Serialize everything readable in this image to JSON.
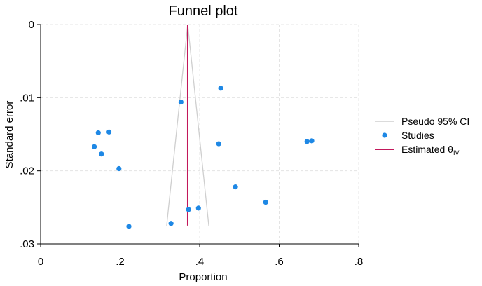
{
  "chart_data": {
    "type": "scatter",
    "title": "Funnel plot",
    "xlabel": "Proportion",
    "ylabel": "Standard error",
    "xlim": [
      0,
      0.8
    ],
    "ylim": [
      0,
      0.03
    ],
    "y_reversed": true,
    "x_ticks": [
      0,
      0.2,
      0.4,
      0.6,
      0.8
    ],
    "x_tick_labels": [
      "0",
      ".2",
      ".4",
      ".6",
      ".8"
    ],
    "y_ticks": [
      0,
      0.01,
      0.02,
      0.03
    ],
    "y_tick_labels": [
      "0",
      ".01",
      ".02",
      ".03"
    ],
    "grid": true,
    "legend_position": "right",
    "estimate": 0.37,
    "series": [
      {
        "name": "Pseudo 95% CI",
        "kind": "lines",
        "color": "#cfcfcf",
        "segments": [
          [
            [
              0.37,
              0.0
            ],
            [
              0.317,
              0.0275
            ]
          ],
          [
            [
              0.37,
              0.0
            ],
            [
              0.423,
              0.0275
            ]
          ]
        ]
      },
      {
        "name": "Studies",
        "kind": "points",
        "color": "#1e88e5",
        "points": [
          {
            "x": 0.135,
            "y": 0.0167
          },
          {
            "x": 0.145,
            "y": 0.0148
          },
          {
            "x": 0.153,
            "y": 0.0177
          },
          {
            "x": 0.172,
            "y": 0.0147
          },
          {
            "x": 0.197,
            "y": 0.0197
          },
          {
            "x": 0.222,
            "y": 0.0276
          },
          {
            "x": 0.328,
            "y": 0.0272
          },
          {
            "x": 0.353,
            "y": 0.0106
          },
          {
            "x": 0.372,
            "y": 0.0253
          },
          {
            "x": 0.397,
            "y": 0.0251
          },
          {
            "x": 0.448,
            "y": 0.0163
          },
          {
            "x": 0.453,
            "y": 0.0087
          },
          {
            "x": 0.49,
            "y": 0.0222
          },
          {
            "x": 0.566,
            "y": 0.0243
          },
          {
            "x": 0.67,
            "y": 0.016
          },
          {
            "x": 0.682,
            "y": 0.0159
          }
        ]
      },
      {
        "name": "Estimated θ",
        "subscript": "IV",
        "kind": "vline",
        "color": "#c2185b",
        "x": 0.37,
        "y_range": [
          0.0,
          0.0275
        ]
      }
    ]
  }
}
